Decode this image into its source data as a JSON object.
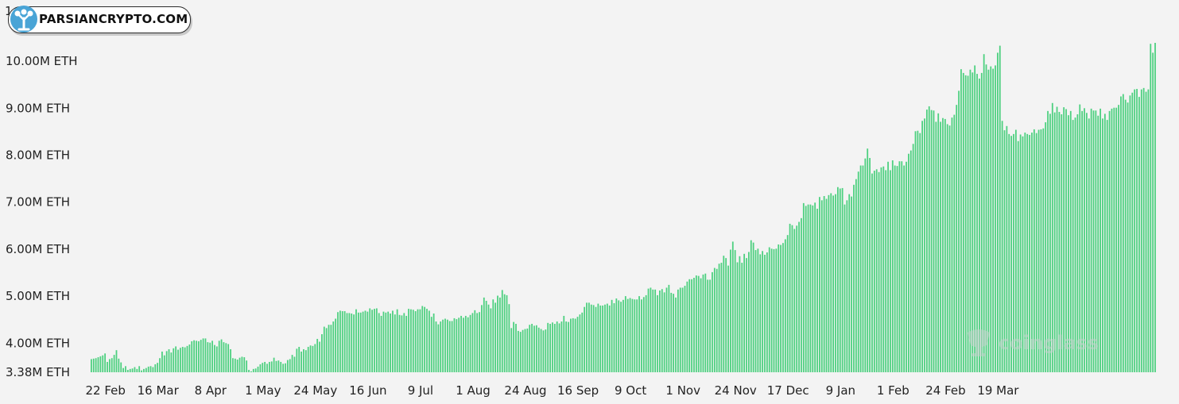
{
  "watermark": {
    "brand": "coinglass"
  },
  "badge": {
    "label": "PARSIANCRYPTO.COM",
    "partial_tick": "1"
  },
  "colors": {
    "bar": "#4cd07f",
    "background": "#f3f3f3"
  },
  "chart_data": {
    "type": "bar",
    "title": "",
    "xlabel": "",
    "ylabel": "",
    "unit": "ETH",
    "ylim": [
      3.38,
      10.5
    ],
    "y_ticks": [
      {
        "value": 3.38,
        "label": "3.38M ETH"
      },
      {
        "value": 4.0,
        "label": "4.00M ETH"
      },
      {
        "value": 5.0,
        "label": "5.00M ETH"
      },
      {
        "value": 6.0,
        "label": "6.00M ETH"
      },
      {
        "value": 7.0,
        "label": "7.00M ETH"
      },
      {
        "value": 8.0,
        "label": "8.00M ETH"
      },
      {
        "value": 9.0,
        "label": "9.00M ETH"
      },
      {
        "value": 10.0,
        "label": "10.00M ETH"
      }
    ],
    "x_ticks": [
      {
        "index": 6,
        "label": "22 Feb"
      },
      {
        "index": 29,
        "label": "16 Mar"
      },
      {
        "index": 52,
        "label": "8 Apr"
      },
      {
        "index": 75,
        "label": "1 May"
      },
      {
        "index": 98,
        "label": "24 May"
      },
      {
        "index": 121,
        "label": "16 Jun"
      },
      {
        "index": 144,
        "label": "9 Jul"
      },
      {
        "index": 167,
        "label": "1 Aug"
      },
      {
        "index": 190,
        "label": "24 Aug"
      },
      {
        "index": 213,
        "label": "16 Sep"
      },
      {
        "index": 236,
        "label": "9 Oct"
      },
      {
        "index": 259,
        "label": "1 Nov"
      },
      {
        "index": 282,
        "label": "24 Nov"
      },
      {
        "index": 305,
        "label": "17 Dec"
      },
      {
        "index": 328,
        "label": "9 Jan"
      },
      {
        "index": 351,
        "label": "1 Feb"
      },
      {
        "index": 374,
        "label": "24 Feb"
      },
      {
        "index": 397,
        "label": "19 Mar"
      }
    ],
    "values": [
      3.66,
      3.67,
      3.68,
      3.7,
      3.72,
      3.74,
      3.78,
      3.6,
      3.66,
      3.68,
      3.75,
      3.85,
      3.67,
      3.59,
      3.47,
      3.51,
      3.43,
      3.45,
      3.46,
      3.49,
      3.45,
      3.51,
      3.42,
      3.45,
      3.47,
      3.5,
      3.51,
      3.49,
      3.55,
      3.58,
      3.68,
      3.82,
      3.74,
      3.83,
      3.87,
      3.8,
      3.89,
      3.93,
      3.86,
      3.9,
      3.92,
      3.91,
      3.94,
      3.97,
      4.04,
      4.06,
      4.05,
      4.04,
      4.07,
      4.1,
      4.1,
      4.02,
      4.01,
      4.05,
      3.96,
      3.93,
      4.05,
      4.08,
      4.02,
      4.0,
      3.98,
      3.87,
      3.68,
      3.67,
      3.65,
      3.69,
      3.71,
      3.7,
      3.63,
      3.43,
      3.4,
      3.45,
      3.46,
      3.5,
      3.55,
      3.58,
      3.6,
      3.56,
      3.6,
      3.61,
      3.69,
      3.62,
      3.63,
      3.6,
      3.56,
      3.57,
      3.64,
      3.66,
      3.75,
      3.71,
      3.88,
      3.92,
      3.82,
      3.87,
      3.85,
      3.92,
      3.95,
      3.94,
      3.98,
      4.09,
      4.03,
      4.19,
      4.35,
      4.32,
      4.39,
      4.39,
      4.46,
      4.52,
      4.66,
      4.69,
      4.68,
      4.68,
      4.64,
      4.64,
      4.63,
      4.61,
      4.72,
      4.65,
      4.65,
      4.67,
      4.69,
      4.67,
      4.74,
      4.71,
      4.73,
      4.74,
      4.64,
      4.58,
      4.67,
      4.65,
      4.67,
      4.63,
      4.69,
      4.61,
      4.72,
      4.6,
      4.59,
      4.64,
      4.58,
      4.73,
      4.72,
      4.71,
      4.68,
      4.72,
      4.72,
      4.79,
      4.77,
      4.73,
      4.69,
      4.56,
      4.63,
      4.46,
      4.4,
      4.46,
      4.5,
      4.52,
      4.5,
      4.47,
      4.47,
      4.53,
      4.51,
      4.54,
      4.58,
      4.54,
      4.58,
      4.55,
      4.6,
      4.64,
      4.7,
      4.64,
      4.66,
      4.81,
      4.97,
      4.9,
      4.82,
      4.74,
      4.93,
      4.86,
      5.01,
      4.97,
      5.13,
      5.04,
      5.02,
      4.83,
      4.32,
      4.45,
      4.41,
      4.26,
      4.24,
      4.28,
      4.3,
      4.31,
      4.39,
      4.41,
      4.37,
      4.38,
      4.33,
      4.3,
      4.27,
      4.29,
      4.43,
      4.41,
      4.44,
      4.41,
      4.46,
      4.42,
      4.46,
      4.58,
      4.46,
      4.45,
      4.52,
      4.53,
      4.52,
      4.56,
      4.61,
      4.65,
      4.77,
      4.86,
      4.86,
      4.82,
      4.81,
      4.77,
      4.84,
      4.8,
      4.8,
      4.82,
      4.84,
      4.8,
      4.92,
      4.85,
      4.95,
      4.91,
      4.88,
      4.92,
      5.0,
      4.94,
      4.96,
      4.94,
      4.93,
      4.93,
      5.0,
      4.93,
      4.98,
      5.02,
      5.16,
      5.18,
      5.14,
      5.14,
      5.02,
      5.12,
      5.15,
      5.08,
      5.18,
      5.24,
      5.07,
      5.05,
      4.97,
      5.14,
      5.18,
      5.18,
      5.22,
      5.31,
      5.36,
      5.36,
      5.39,
      5.44,
      5.43,
      5.38,
      5.46,
      5.48,
      5.35,
      5.35,
      5.51,
      5.6,
      5.58,
      5.69,
      5.71,
      5.86,
      5.81,
      5.65,
      5.99,
      6.16,
      5.98,
      5.72,
      5.85,
      5.71,
      5.9,
      5.81,
      5.94,
      6.19,
      6.14,
      5.98,
      6.01,
      5.89,
      5.96,
      5.88,
      5.93,
      6.04,
      6.01,
      6.0,
      6.01,
      6.1,
      6.09,
      6.13,
      6.21,
      6.3,
      6.54,
      6.51,
      6.43,
      6.5,
      6.58,
      6.66,
      6.98,
      6.92,
      6.95,
      6.95,
      6.93,
      6.99,
      6.86,
      7.11,
      7.04,
      7.13,
      7.07,
      7.15,
      7.19,
      7.14,
      7.17,
      7.32,
      7.29,
      7.3,
      6.95,
      7.04,
      7.17,
      7.12,
      7.37,
      7.49,
      7.65,
      7.78,
      7.78,
      7.93,
      8.14,
      7.94,
      7.61,
      7.67,
      7.7,
      7.64,
      7.74,
      7.76,
      7.68,
      7.86,
      7.68,
      7.89,
      7.78,
      7.77,
      7.87,
      7.87,
      7.78,
      7.86,
      8.03,
      8.1,
      8.24,
      8.51,
      8.52,
      8.47,
      8.73,
      8.78,
      8.97,
      9.04,
      8.96,
      8.95,
      8.71,
      8.89,
      8.71,
      8.79,
      8.77,
      8.66,
      8.63,
      8.8,
      8.86,
      9.07,
      9.37,
      9.83,
      9.75,
      9.7,
      9.69,
      9.82,
      9.76,
      9.91,
      9.73,
      9.63,
      9.75,
      10.15,
      9.93,
      9.82,
      9.89,
      9.84,
      9.91,
      10.18,
      10.33,
      8.73,
      8.53,
      8.62,
      8.45,
      8.41,
      8.45,
      8.54,
      8.3,
      8.44,
      8.4,
      8.48,
      8.45,
      8.43,
      8.48,
      8.55,
      8.47,
      8.54,
      8.55,
      8.57,
      8.7,
      8.94,
      8.88,
      9.11,
      8.91,
      9.03,
      8.92,
      8.87,
      9.02,
      8.98,
      8.85,
      8.94,
      8.75,
      8.8,
      8.87,
      9.08,
      8.94,
      9.0,
      8.9,
      8.78,
      8.99,
      8.95,
      8.95,
      8.84,
      8.99,
      8.78,
      8.88,
      8.75,
      8.94,
      8.99,
      9.01,
      9.01,
      9.07,
      9.25,
      9.3,
      9.18,
      9.12,
      9.27,
      9.33,
      9.4,
      9.41,
      9.24,
      9.4,
      9.43,
      9.35,
      9.4,
      10.37,
      10.18,
      10.39
    ]
  }
}
